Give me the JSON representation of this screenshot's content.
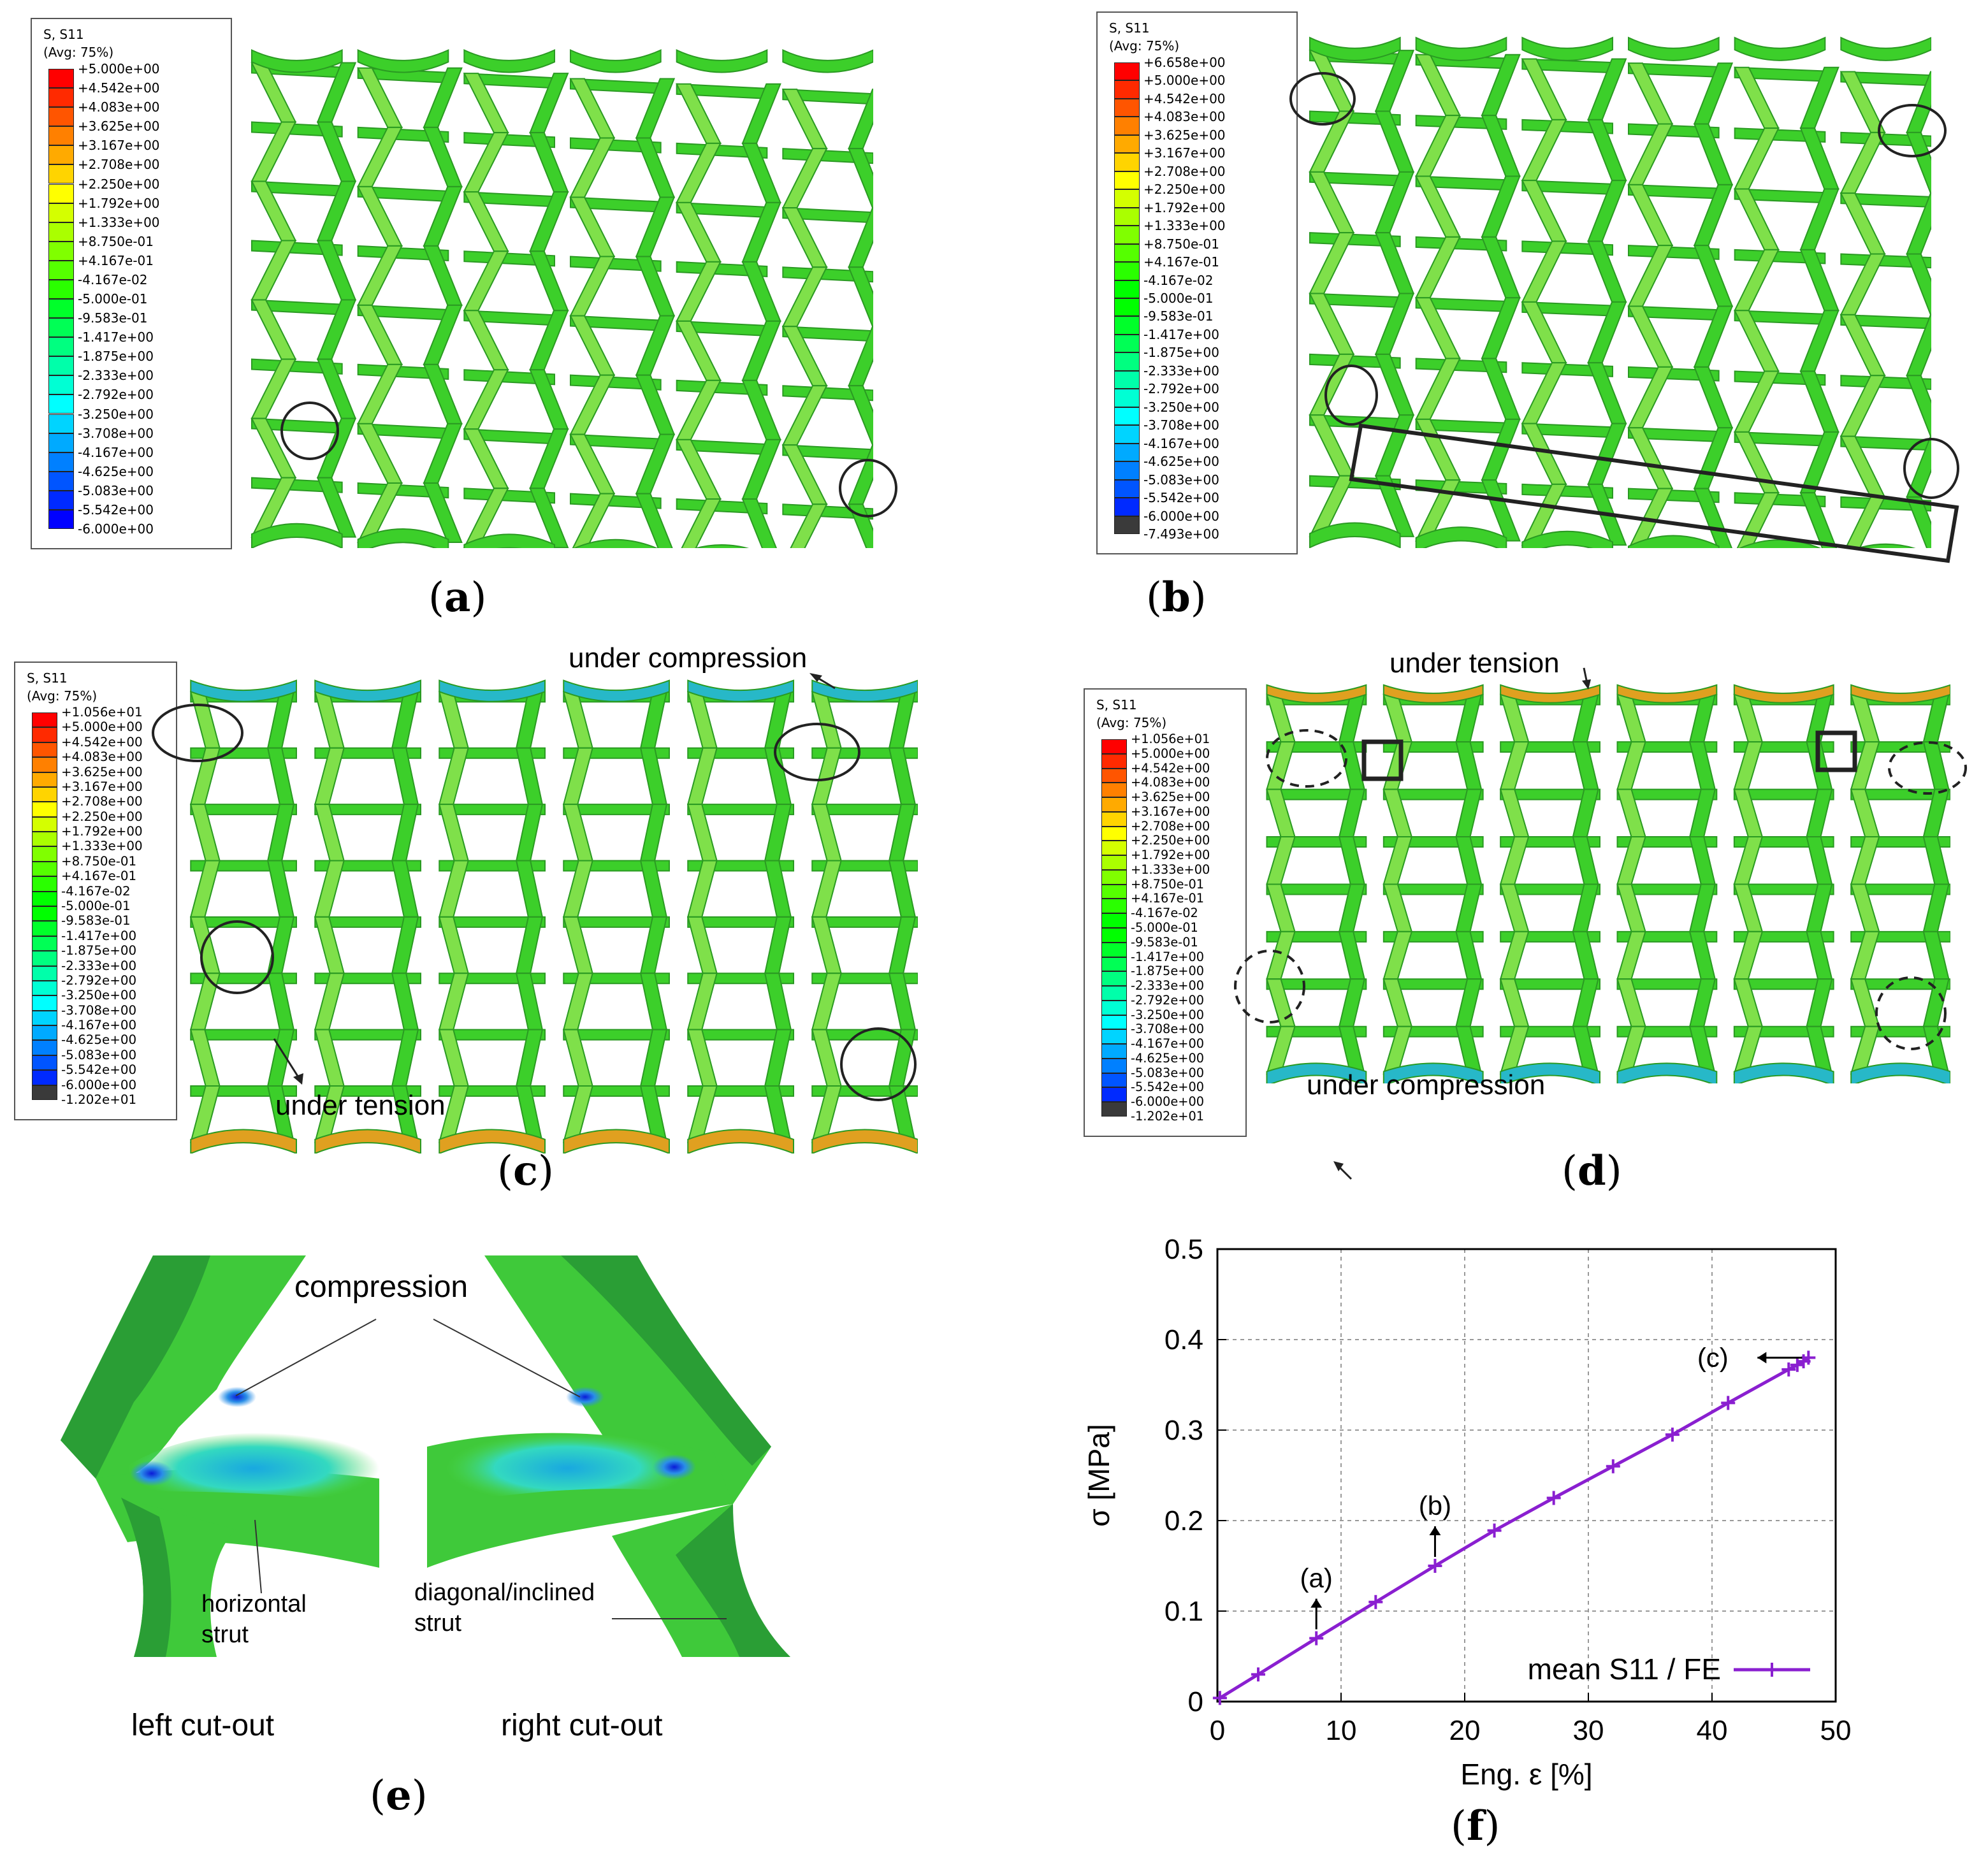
{
  "legend_header": {
    "line1": "S, S11",
    "line2": "(Avg: 75%)"
  },
  "legend_colors": [
    "#ff0000",
    "#ff2a00",
    "#ff5500",
    "#ff8000",
    "#ffaa00",
    "#ffd400",
    "#ffff00",
    "#d4ff00",
    "#aaff00",
    "#80ff00",
    "#55ff00",
    "#2aff00",
    "#00ff00",
    "#00ff2a",
    "#00ff55",
    "#00ff80",
    "#00ffaa",
    "#00ffd4",
    "#00ffff",
    "#00d4ff",
    "#00aaff",
    "#0080ff",
    "#0055ff",
    "#002aff",
    "#0000ff"
  ],
  "legend_a": {
    "values": [
      "+5.000e+00",
      "+4.542e+00",
      "+4.083e+00",
      "+3.625e+00",
      "+3.167e+00",
      "+2.708e+00",
      "+2.250e+00",
      "+1.792e+00",
      "+1.333e+00",
      "+8.750e-01",
      "+4.167e-01",
      "-4.167e-02",
      "-5.000e-01",
      "-9.583e-01",
      "-1.417e+00",
      "-1.875e+00",
      "-2.333e+00",
      "-2.792e+00",
      "-3.250e+00",
      "-3.708e+00",
      "-4.167e+00",
      "-4.625e+00",
      "-5.083e+00",
      "-5.542e+00",
      "-6.000e+00"
    ]
  },
  "legend_b": {
    "values": [
      "+6.658e+00",
      "+5.000e+00",
      "+4.542e+00",
      "+4.083e+00",
      "+3.625e+00",
      "+3.167e+00",
      "+2.708e+00",
      "+2.250e+00",
      "+1.792e+00",
      "+1.333e+00",
      "+8.750e-01",
      "+4.167e-01",
      "-4.167e-02",
      "-5.000e-01",
      "-9.583e-01",
      "-1.417e+00",
      "-1.875e+00",
      "-2.333e+00",
      "-2.792e+00",
      "-3.250e+00",
      "-3.708e+00",
      "-4.167e+00",
      "-4.625e+00",
      "-5.083e+00",
      "-5.542e+00",
      "-6.000e+00",
      "-7.493e+00"
    ]
  },
  "legend_cd": {
    "values": [
      "+1.056e+01",
      "+5.000e+00",
      "+4.542e+00",
      "+4.083e+00",
      "+3.625e+00",
      "+3.167e+00",
      "+2.708e+00",
      "+2.250e+00",
      "+1.792e+00",
      "+1.333e+00",
      "+8.750e-01",
      "+4.167e-01",
      "-4.167e-02",
      "-5.000e-01",
      "-9.583e-01",
      "-1.417e+00",
      "-1.875e+00",
      "-2.333e+00",
      "-2.792e+00",
      "-3.250e+00",
      "-3.708e+00",
      "-4.167e+00",
      "-4.625e+00",
      "-5.083e+00",
      "-5.542e+00",
      "-6.000e+00",
      "-1.202e+01"
    ]
  },
  "panel_labels": {
    "a": "a",
    "b": "b",
    "c": "c",
    "d": "d",
    "e": "e",
    "f": "f"
  },
  "annotations": {
    "c_compression": "under compression",
    "c_tension": "under tension",
    "d_tension": "under tension",
    "d_compression": "under compression",
    "e_compression": "compression",
    "e_horizontal_1": "horizontal",
    "e_horizontal_2": "strut",
    "e_diagonal_1": "diagonal/inclined",
    "e_diagonal_2": "strut",
    "e_left": "left cut-out",
    "e_right": "right cut-out"
  },
  "chart_data": {
    "type": "line",
    "xlabel": "Eng. ε [%]",
    "ylabel": "σ [MPa]",
    "xlim": [
      0,
      50
    ],
    "ylim": [
      0,
      0.5
    ],
    "xticks": [
      0,
      10,
      20,
      30,
      40,
      50
    ],
    "yticks": [
      0,
      0.1,
      0.2,
      0.3,
      0.4,
      0.5
    ],
    "grid": true,
    "legend_position": "bottom-right",
    "series": [
      {
        "name": "mean S11 / FE",
        "color": "#8a1fd0",
        "x": [
          0.2,
          3.3,
          8.0,
          12.8,
          17.6,
          22.4,
          27.2,
          32.0,
          36.8,
          41.3,
          46.2,
          46.9,
          47.4,
          47.8
        ],
        "y": [
          0.004,
          0.03,
          0.07,
          0.11,
          0.15,
          0.189,
          0.225,
          0.26,
          0.295,
          0.33,
          0.367,
          0.372,
          0.376,
          0.38
        ]
      }
    ],
    "annotations": [
      {
        "text": "(a)",
        "x": 8.0,
        "y": 0.07
      },
      {
        "text": "(b)",
        "x": 17.6,
        "y": 0.15
      },
      {
        "text": "(c)",
        "x": 47.8,
        "y": 0.38
      }
    ]
  }
}
